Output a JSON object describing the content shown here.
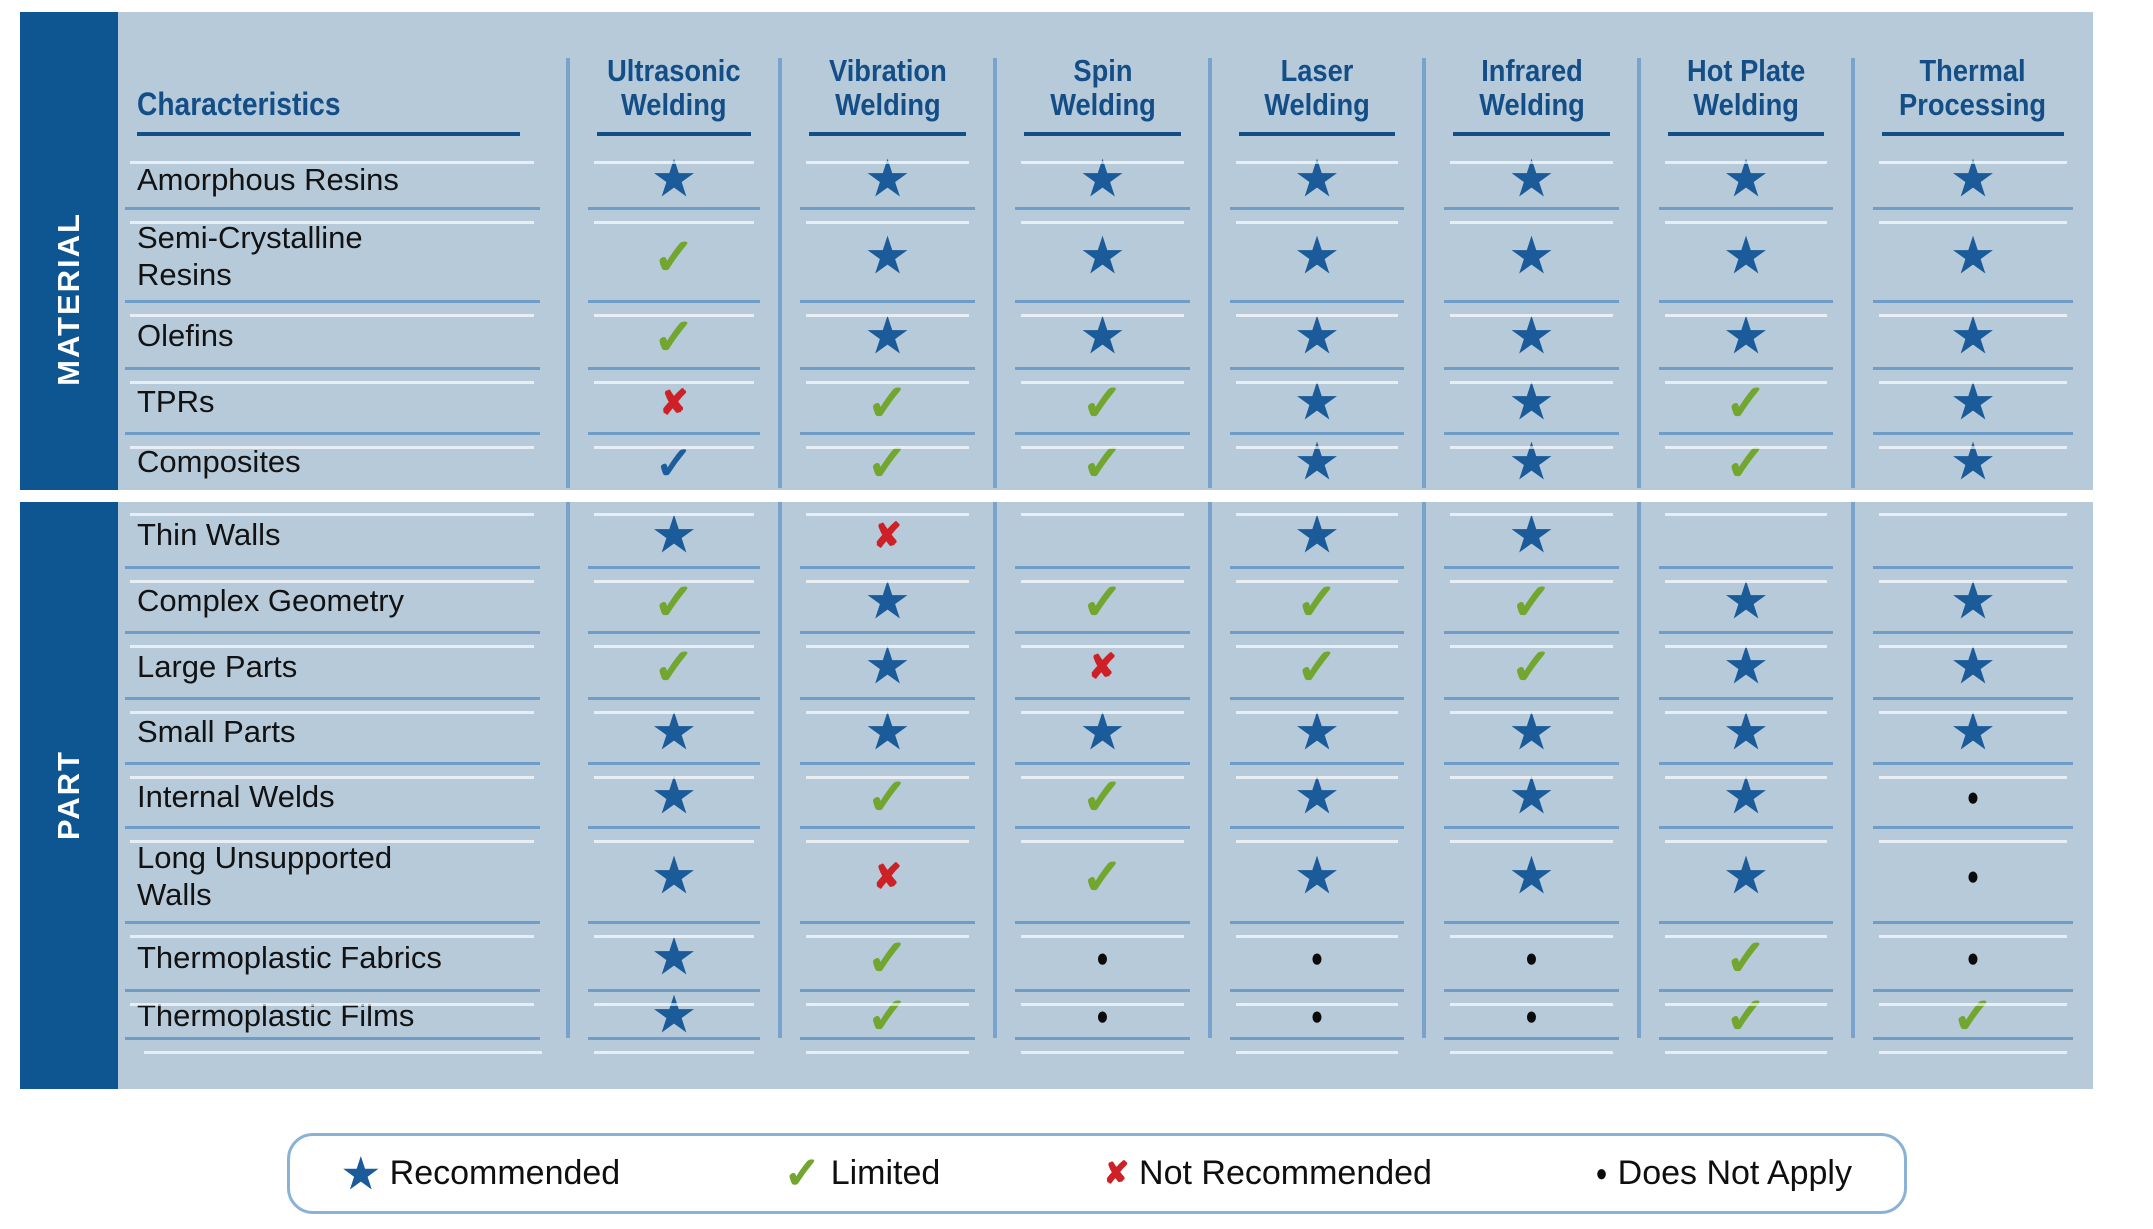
{
  "symbols": {
    "star": "★",
    "check": "✓",
    "check-blue": "✓",
    "x": "✘",
    "dot": "●",
    "blank": ""
  },
  "symbol_meanings": {
    "star": "Recommended",
    "check": "Limited",
    "check-blue": "Limited",
    "x": "Not Recommended",
    "dot": "Does Not Apply",
    "blank": ""
  },
  "table": {
    "corner_header": "Characteristics",
    "columns": [
      "Ultrasonic\nWelding",
      "Vibration\nWelding",
      "Spin\nWelding",
      "Laser\nWelding",
      "Infrared\nWelding",
      "Hot Plate\nWelding",
      "Thermal\nProcessing"
    ],
    "sections": [
      {
        "band_label": "MATERIAL",
        "rows": [
          {
            "label": "Amorphous Resins",
            "cells": [
              "star",
              "star",
              "star",
              "star",
              "star",
              "star",
              "star"
            ]
          },
          {
            "label": "Semi-Crystalline\nResins",
            "cells": [
              "check",
              "star",
              "star",
              "star",
              "star",
              "star",
              "star"
            ]
          },
          {
            "label": "Olefins",
            "cells": [
              "check",
              "star",
              "star",
              "star",
              "star",
              "star",
              "star"
            ]
          },
          {
            "label": "TPRs",
            "cells": [
              "x",
              "check",
              "check",
              "star",
              "star",
              "check",
              "star"
            ]
          },
          {
            "label": "Composites",
            "cells": [
              "check-blue",
              "check",
              "check",
              "star",
              "star",
              "check",
              "star"
            ]
          }
        ]
      },
      {
        "band_label": "PART",
        "rows": [
          {
            "label": "Thin Walls",
            "cells": [
              "star",
              "x",
              "blank",
              "star",
              "star",
              "blank",
              "blank"
            ]
          },
          {
            "label": "Complex Geometry",
            "cells": [
              "check",
              "star",
              "check",
              "check",
              "check",
              "star",
              "star"
            ]
          },
          {
            "label": "Large Parts",
            "cells": [
              "check",
              "star",
              "x",
              "check",
              "check",
              "star",
              "star"
            ]
          },
          {
            "label": "Small Parts",
            "cells": [
              "star",
              "star",
              "star",
              "star",
              "star",
              "star",
              "star"
            ]
          },
          {
            "label": "Internal Welds",
            "cells": [
              "star",
              "check",
              "check",
              "star",
              "star",
              "star",
              "dot"
            ]
          },
          {
            "label": "Long Unsupported\nWalls",
            "cells": [
              "star",
              "x",
              "check",
              "star",
              "star",
              "star",
              "dot"
            ]
          },
          {
            "label": "Thermoplastic Fabrics",
            "cells": [
              "star",
              "check",
              "dot",
              "dot",
              "dot",
              "check",
              "dot"
            ]
          },
          {
            "label": "Thermoplastic Films",
            "cells": [
              "star",
              "check",
              "dot",
              "dot",
              "dot",
              "check",
              "check"
            ]
          }
        ]
      }
    ]
  },
  "legend": {
    "items": [
      {
        "symbol": "star",
        "label": "Recommended"
      },
      {
        "symbol": "check",
        "label": "Limited"
      },
      {
        "symbol": "x",
        "label": "Not Recommended"
      },
      {
        "symbol": "dot",
        "label": "Does Not Apply"
      }
    ]
  },
  "colors": {
    "band_blue": "#0d5691",
    "table_background": "#b6cada",
    "header_navy": "#134e87",
    "star_blue": "#1b5b99",
    "check_green": "#72a62e",
    "x_red": "#cd2127",
    "blue_check": "#1e5d9c",
    "separator_blue": "#7aa3cc",
    "rule_blue": "#6f9dc8",
    "legend_border": "#8ab2d6"
  },
  "chart_data": {
    "type": "table",
    "title": "Plastic joining process selector matrix",
    "columns": [
      "Ultrasonic Welding",
      "Vibration Welding",
      "Spin Welding",
      "Laser Welding",
      "Infrared Welding",
      "Hot Plate Welding",
      "Thermal Processing"
    ],
    "row_groups": [
      "MATERIAL",
      "PART"
    ],
    "rows": [
      {
        "group": "MATERIAL",
        "label": "Amorphous Resins",
        "values": [
          "Recommended",
          "Recommended",
          "Recommended",
          "Recommended",
          "Recommended",
          "Recommended",
          "Recommended"
        ]
      },
      {
        "group": "MATERIAL",
        "label": "Semi-Crystalline Resins",
        "values": [
          "Limited",
          "Recommended",
          "Recommended",
          "Recommended",
          "Recommended",
          "Recommended",
          "Recommended"
        ]
      },
      {
        "group": "MATERIAL",
        "label": "Olefins",
        "values": [
          "Limited",
          "Recommended",
          "Recommended",
          "Recommended",
          "Recommended",
          "Recommended",
          "Recommended"
        ]
      },
      {
        "group": "MATERIAL",
        "label": "TPRs",
        "values": [
          "Not Recommended",
          "Limited",
          "Limited",
          "Recommended",
          "Recommended",
          "Limited",
          "Recommended"
        ]
      },
      {
        "group": "MATERIAL",
        "label": "Composites",
        "values": [
          "Limited (blue check)",
          "Limited",
          "Limited",
          "Recommended",
          "Recommended",
          "Limited",
          "Recommended"
        ]
      },
      {
        "group": "PART",
        "label": "Thin Walls",
        "values": [
          "Recommended",
          "Not Recommended",
          "",
          "Recommended",
          "Recommended",
          "",
          ""
        ]
      },
      {
        "group": "PART",
        "label": "Complex Geometry",
        "values": [
          "Limited",
          "Recommended",
          "Limited",
          "Limited",
          "Limited",
          "Recommended",
          "Recommended"
        ]
      },
      {
        "group": "PART",
        "label": "Large Parts",
        "values": [
          "Limited",
          "Recommended",
          "Not Recommended",
          "Limited",
          "Limited",
          "Recommended",
          "Recommended"
        ]
      },
      {
        "group": "PART",
        "label": "Small Parts",
        "values": [
          "Recommended",
          "Recommended",
          "Recommended",
          "Recommended",
          "Recommended",
          "Recommended",
          "Recommended"
        ]
      },
      {
        "group": "PART",
        "label": "Internal Welds",
        "values": [
          "Recommended",
          "Limited",
          "Limited",
          "Recommended",
          "Recommended",
          "Recommended",
          "Does Not Apply"
        ]
      },
      {
        "group": "PART",
        "label": "Long Unsupported Walls",
        "values": [
          "Recommended",
          "Not Recommended",
          "Limited",
          "Recommended",
          "Recommended",
          "Recommended",
          "Does Not Apply"
        ]
      },
      {
        "group": "PART",
        "label": "Thermoplastic Fabrics",
        "values": [
          "Recommended",
          "Limited",
          "Does Not Apply",
          "Does Not Apply",
          "Does Not Apply",
          "Limited",
          "Does Not Apply"
        ]
      },
      {
        "group": "PART",
        "label": "Thermoplastic Films",
        "values": [
          "Recommended",
          "Limited",
          "Does Not Apply",
          "Does Not Apply",
          "Does Not Apply",
          "Limited",
          "Limited"
        ]
      }
    ],
    "legend": {
      "★": "Recommended",
      "✓": "Limited",
      "✘": "Not Recommended",
      "●": "Does Not Apply"
    }
  }
}
